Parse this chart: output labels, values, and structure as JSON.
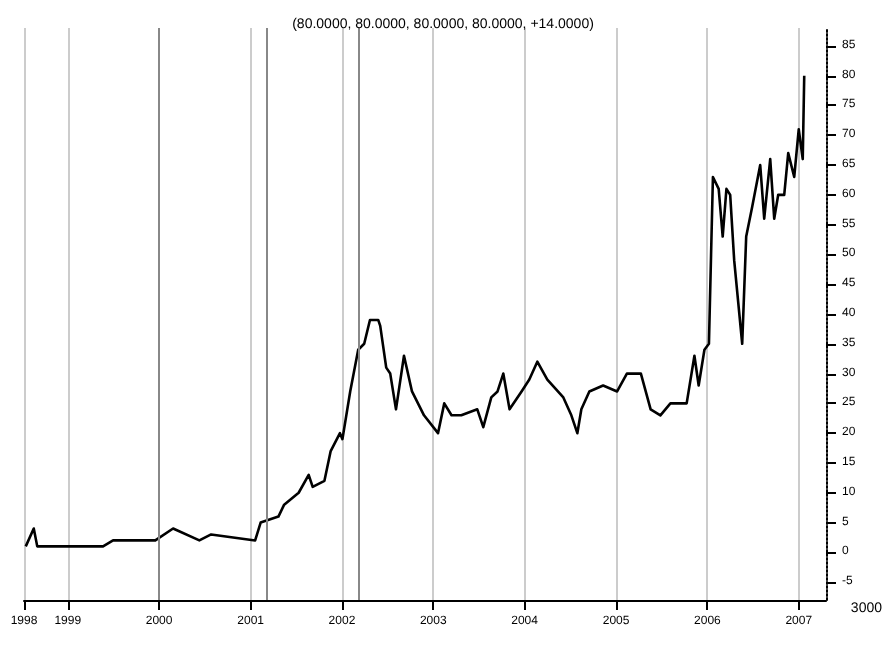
{
  "chart_data": {
    "type": "line",
    "title": "(80.0000, 80.0000, 80.0000, 80.0000, +14.0000)",
    "x": [
      "1998-07-17",
      "1998-08-18",
      "1998-09-01",
      "1999-05-22",
      "1999-07-01",
      "1999-12-17",
      "2000-02-26",
      "2000-06-10",
      "2000-07-27",
      "2001-01-19",
      "2001-02-10",
      "2001-04-22",
      "2001-05-15",
      "2001-07-12",
      "2001-08-21",
      "2001-09-06",
      "2001-10-23",
      "2001-11-17",
      "2001-12-24",
      "2002-01-03",
      "2002-02-03",
      "2002-03-07",
      "2002-03-31",
      "2002-04-23",
      "2002-05-26",
      "2002-06-03",
      "2002-06-27",
      "2002-07-13",
      "2002-08-05",
      "2002-09-06",
      "2002-10-08",
      "2002-11-25",
      "2003-01-20",
      "2003-02-14",
      "2003-03-15",
      "2003-04-23",
      "2003-06-26",
      "2003-07-20",
      "2003-08-21",
      "2003-09-15",
      "2003-10-08",
      "2003-11-02",
      "2003-12-20",
      "2004-01-20",
      "2004-02-21",
      "2004-04-01",
      "2004-06-04",
      "2004-07-06",
      "2004-07-30",
      "2004-08-15",
      "2004-09-16",
      "2004-11-10",
      "2005-01-05",
      "2005-02-13",
      "2005-04-10",
      "2005-05-19",
      "2005-06-27",
      "2005-08-06",
      "2005-10-10",
      "2005-11-10",
      "2005-11-27",
      "2005-12-20",
      "2006-01-07",
      "2006-01-23",
      "2006-02-15",
      "2006-03-03",
      "2006-03-18",
      "2006-04-02",
      "2006-04-18",
      "2006-05-04",
      "2006-05-20",
      "2006-06-05",
      "2006-06-29",
      "2006-07-31",
      "2006-08-16",
      "2006-09-09",
      "2006-09-25",
      "2006-10-11",
      "2006-11-04",
      "2006-11-20",
      "2006-12-14",
      "2007-01-01",
      "2007-01-17",
      "2007-01-23"
    ],
    "series": [
      {
        "color": "#000000",
        "values": [
          1,
          4,
          1,
          1,
          2,
          2,
          4,
          2,
          3,
          2,
          5,
          6,
          8,
          10,
          13,
          11,
          12,
          17,
          20,
          19,
          27,
          34,
          35,
          39,
          39,
          38,
          31,
          30,
          24,
          33,
          27,
          23,
          20,
          25,
          23,
          23,
          24,
          21,
          26,
          27,
          30,
          24,
          27,
          29,
          32,
          29,
          26,
          23,
          20,
          24,
          27,
          28,
          27,
          30,
          30,
          24,
          23,
          25,
          25,
          33,
          28,
          34,
          35,
          63,
          61,
          53,
          61,
          60,
          49,
          42,
          35,
          53,
          58,
          65,
          56,
          66,
          56,
          60,
          60,
          67,
          63,
          71,
          66,
          80
        ]
      }
    ],
    "xlim": [
      "1998-07-10",
      "2007-04-20"
    ],
    "xticks": [
      {
        "value": "1998-07-10",
        "label": "1998"
      },
      {
        "value": "1999-01-01",
        "label": "1999"
      },
      {
        "value": "2000-01-01",
        "label": "2000"
      },
      {
        "value": "2001-01-01",
        "label": "2001"
      },
      {
        "value": "2002-01-01",
        "label": "2002"
      },
      {
        "value": "2003-01-01",
        "label": "2003"
      },
      {
        "value": "2004-01-01",
        "label": "2004"
      },
      {
        "value": "2005-01-01",
        "label": "2005"
      },
      {
        "value": "2006-01-01",
        "label": "2006"
      },
      {
        "value": "2007-01-01",
        "label": "2007"
      }
    ],
    "ylim": [
      -8,
      88
    ],
    "yticks": [
      -5,
      0,
      5,
      10,
      15,
      20,
      25,
      30,
      35,
      40,
      45,
      50,
      55,
      60,
      65,
      70,
      75,
      80,
      85
    ],
    "ref_lines": [
      {
        "axis": "x",
        "value": "2000-01-01",
        "color": "#888888"
      },
      {
        "axis": "x",
        "value": "2001-03-08",
        "color": "#888888"
      },
      {
        "axis": "x",
        "value": "2002-03-10",
        "color": "#888888"
      }
    ],
    "annotations": [
      "3000"
    ],
    "grid": "x",
    "marker": "none",
    "line_style": "solid"
  }
}
